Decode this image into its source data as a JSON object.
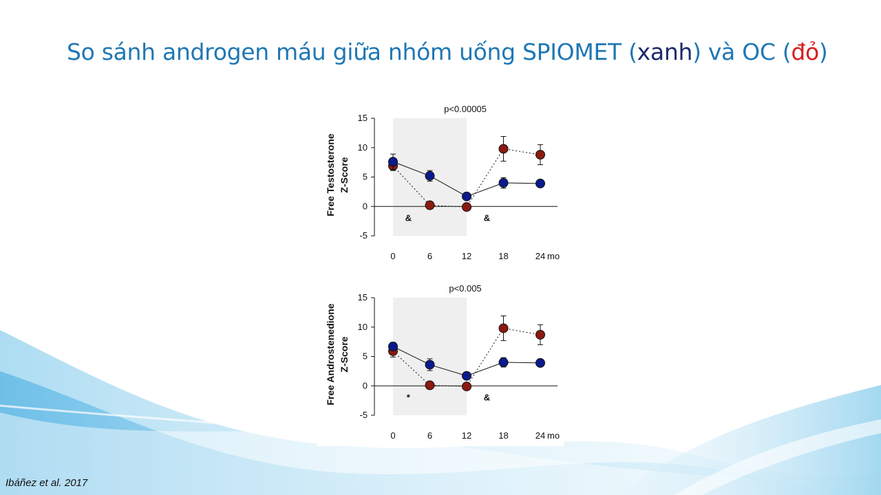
{
  "slide": {
    "title_parts": {
      "lead": "So sánh androgen máu giữa nhóm uống SPIOMET (",
      "blue_word": "xanh",
      "middle": ") và OC (",
      "red_word": "đỏ",
      "tail": ")"
    },
    "citation": "Ibáñez et al. 2017",
    "colors": {
      "title": "#1f77b4",
      "spiomet": "#0a1a8c",
      "oc": "#8b1a10",
      "shade": "#efefef"
    }
  },
  "chart_data": [
    {
      "type": "line",
      "ylabel_lines": [
        "Free Testosterone",
        "Z-Score"
      ],
      "pvalue": "p<0.00005",
      "x": [
        0,
        6,
        12,
        18,
        24
      ],
      "x_tick_labels": [
        "0",
        "6",
        "12",
        "18",
        "24"
      ],
      "x_unit": "mo",
      "ylim": [
        -5,
        15
      ],
      "y_ticks": [
        15,
        10,
        5,
        0,
        -5
      ],
      "shaded_x_range": [
        0,
        12
      ],
      "series": [
        {
          "key": "spiomet",
          "values": [
            7.6,
            5.2,
            1.7,
            4.0,
            3.9
          ],
          "errors": [
            1.3,
            0.9,
            0.4,
            0.9,
            0.5
          ],
          "line": "solid"
        },
        {
          "key": "oc",
          "values": [
            6.9,
            0.2,
            -0.1,
            9.8,
            8.8
          ],
          "errors": [
            0.8,
            0.3,
            0.3,
            2.1,
            1.7
          ],
          "line": "dotted"
        }
      ],
      "annotations": [
        {
          "text": "&",
          "x": 2.5,
          "y": -1.9
        },
        {
          "text": "&",
          "x": 15.3,
          "y": -1.9
        }
      ]
    },
    {
      "type": "line",
      "ylabel_lines": [
        "Free Androstenedione",
        "Z-Score"
      ],
      "pvalue": "p<0.005",
      "x": [
        0,
        6,
        12,
        18,
        24
      ],
      "x_tick_labels": [
        "0",
        "6",
        "12",
        "18",
        "24"
      ],
      "x_unit": "mo",
      "ylim": [
        -5,
        15
      ],
      "y_ticks": [
        15,
        10,
        5,
        0,
        -5
      ],
      "shaded_x_range": [
        0,
        12
      ],
      "series": [
        {
          "key": "spiomet",
          "values": [
            6.7,
            3.6,
            1.7,
            4.0,
            3.9
          ],
          "errors": [
            0.7,
            1.0,
            0.3,
            0.8,
            0.5
          ],
          "line": "solid"
        },
        {
          "key": "oc",
          "values": [
            5.9,
            0.1,
            -0.1,
            9.8,
            8.7
          ],
          "errors": [
            1.0,
            0.3,
            0.3,
            2.1,
            1.7
          ],
          "line": "dotted"
        }
      ],
      "annotations": [
        {
          "text": "*",
          "x": 2.5,
          "y": -1.9
        },
        {
          "text": "&",
          "x": 15.3,
          "y": -1.9
        }
      ]
    }
  ]
}
